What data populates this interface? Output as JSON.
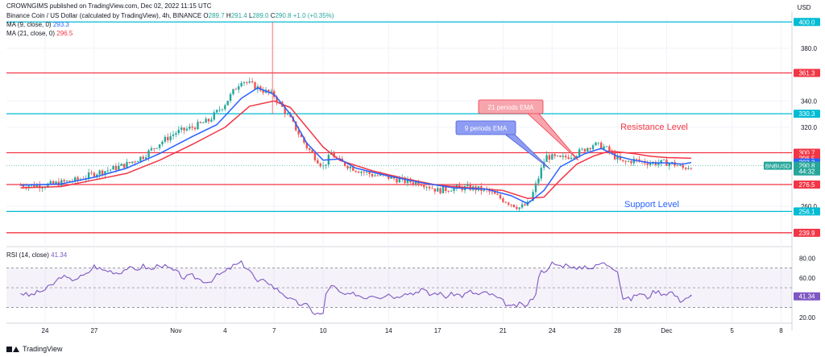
{
  "header": {
    "publisher": "CROWNGIMS published on TradingView.com, Dec 02, 2022 11:15 UTC",
    "symbol": "Binance Coin / US Dollar (calculated by TradingView), 4h, BINANCE",
    "ohlc": {
      "o_label": "O",
      "o": "289.7",
      "h_label": "H",
      "h": "291.4",
      "l_label": "L",
      "l": "289.0",
      "c_label": "C",
      "c": "290.8",
      "chg": "+1.0 (+0.35%)"
    },
    "ma9": {
      "label": "MA (9, close, 0)",
      "value": "293.3"
    },
    "ma21": {
      "label": "MA (21, close, 0)",
      "value": "296.5"
    }
  },
  "rsi": {
    "label": "RSI (14, close)",
    "value": "41.34"
  },
  "footer": {
    "brand": "TradingView"
  },
  "colors": {
    "bull": "#26a69a",
    "bear": "#ef5350",
    "ma9": "#2962ff",
    "ma21": "#f23645",
    "teal_level": "#00bcd4",
    "red_level": "#f23645",
    "rsi": "#7e57c2"
  },
  "annotations": {
    "ema21": "21 periods EMA",
    "ema9": "9 periods EMA",
    "resistance": "Resistance Level",
    "support": "Support Level"
  },
  "chart_data": {
    "type": "candlestick",
    "currency": "USD",
    "timeframe": "4h",
    "ylim": [
      230,
      402
    ],
    "price_ticks": [
      "380.0",
      "340.0",
      "320.0",
      "260.0"
    ],
    "levels": [
      {
        "value": 400,
        "label": "400.0",
        "kind": "teal"
      },
      {
        "value": 361.3,
        "label": "361.3",
        "kind": "red"
      },
      {
        "value": 330.3,
        "label": "330.3",
        "kind": "teal"
      },
      {
        "value": 300.7,
        "label": "300.7",
        "kind": "red"
      },
      {
        "value": 276.5,
        "label": "276.5",
        "kind": "red"
      },
      {
        "value": 256.1,
        "label": "256.1",
        "kind": "teal"
      },
      {
        "value": 239.9,
        "label": "239.9",
        "kind": "red"
      }
    ],
    "price_badges": [
      {
        "value": 296.5,
        "label": "296.5",
        "kind": "red"
      },
      {
        "value": 293.3,
        "label": "293.3",
        "kind": "blue"
      },
      {
        "value": 290.8,
        "label": "290.8",
        "kind": "ticker"
      },
      {
        "value": 286.5,
        "label": "44:32",
        "kind": "ticker_sub"
      }
    ],
    "ticker": "BNBUSD",
    "x_labels": [
      {
        "day": 0,
        "label": "24"
      },
      {
        "day": 3,
        "label": "27"
      },
      {
        "day": 8,
        "label": "Nov"
      },
      {
        "day": 11,
        "label": "4"
      },
      {
        "day": 14,
        "label": "7"
      },
      {
        "day": 17,
        "label": "10"
      },
      {
        "day": 21,
        "label": "14"
      },
      {
        "day": 24,
        "label": "17"
      },
      {
        "day": 28,
        "label": "21"
      },
      {
        "day": 31,
        "label": "24"
      },
      {
        "day": 35,
        "label": "28"
      },
      {
        "day": 38,
        "label": "Dec"
      },
      {
        "day": 42,
        "label": "5"
      },
      {
        "day": 45,
        "label": "8"
      }
    ],
    "close_path": [
      [
        -1.5,
        276
      ],
      [
        0,
        276
      ],
      [
        1,
        278
      ],
      [
        2,
        280
      ],
      [
        3,
        285
      ],
      [
        4,
        288
      ],
      [
        5,
        292
      ],
      [
        6,
        298
      ],
      [
        7,
        308
      ],
      [
        8,
        316
      ],
      [
        9,
        320
      ],
      [
        10,
        325
      ],
      [
        11,
        338
      ],
      [
        12,
        356
      ],
      [
        13,
        350
      ],
      [
        14,
        344
      ],
      [
        15,
        326
      ],
      [
        16,
        305
      ],
      [
        17,
        290
      ],
      [
        17.5,
        300
      ],
      [
        18,
        294
      ],
      [
        19,
        288
      ],
      [
        20,
        284
      ],
      [
        21,
        282
      ],
      [
        22,
        279
      ],
      [
        23,
        278
      ],
      [
        24,
        272
      ],
      [
        25,
        274
      ],
      [
        26,
        274
      ],
      [
        27,
        272
      ],
      [
        28,
        265
      ],
      [
        29,
        259
      ],
      [
        29.6,
        262
      ],
      [
        30.2,
        283
      ],
      [
        30.6,
        298
      ],
      [
        31.5,
        296
      ],
      [
        32.5,
        300
      ],
      [
        33.5,
        307
      ],
      [
        34.2,
        305
      ],
      [
        34.8,
        298
      ],
      [
        35.3,
        293
      ],
      [
        36,
        295
      ],
      [
        37,
        293
      ],
      [
        38,
        293
      ],
      [
        38.5,
        292
      ],
      [
        39,
        289
      ],
      [
        39.5,
        290.8
      ]
    ],
    "ma9": [
      [
        -1.5,
        276
      ],
      [
        1,
        277
      ],
      [
        3,
        282
      ],
      [
        5,
        289
      ],
      [
        7,
        300
      ],
      [
        9,
        313
      ],
      [
        10.5,
        322
      ],
      [
        12,
        342
      ],
      [
        13,
        350
      ],
      [
        14,
        345
      ],
      [
        15,
        330
      ],
      [
        16,
        308
      ],
      [
        17,
        295
      ],
      [
        18,
        296
      ],
      [
        19,
        289
      ],
      [
        21,
        283
      ],
      [
        23,
        278
      ],
      [
        25,
        274
      ],
      [
        27,
        273
      ],
      [
        28.5,
        268
      ],
      [
        29.5,
        262
      ],
      [
        30.5,
        272
      ],
      [
        31.5,
        290
      ],
      [
        33,
        300
      ],
      [
        34,
        304
      ],
      [
        35,
        298
      ],
      [
        36,
        295
      ],
      [
        37,
        293
      ],
      [
        38,
        293
      ],
      [
        39,
        292
      ],
      [
        39.5,
        293.3
      ]
    ],
    "ma21": [
      [
        -1.5,
        274
      ],
      [
        1,
        275
      ],
      [
        3,
        280
      ],
      [
        5,
        285
      ],
      [
        7,
        295
      ],
      [
        9,
        307
      ],
      [
        11,
        320
      ],
      [
        12.5,
        336
      ],
      [
        14,
        340
      ],
      [
        15,
        335
      ],
      [
        16,
        320
      ],
      [
        17,
        305
      ],
      [
        18,
        295
      ],
      [
        20,
        287
      ],
      [
        22,
        281
      ],
      [
        24,
        276
      ],
      [
        26,
        274
      ],
      [
        28,
        272
      ],
      [
        29.5,
        266
      ],
      [
        30.5,
        267
      ],
      [
        31.5,
        280
      ],
      [
        32.5,
        292
      ],
      [
        33.5,
        298
      ],
      [
        34.5,
        302
      ],
      [
        36,
        300
      ],
      [
        37,
        298
      ],
      [
        38,
        297
      ],
      [
        39.5,
        296.5
      ]
    ],
    "rsi": {
      "ylim": [
        15,
        90
      ],
      "ticks": [
        "80.00",
        "60.00",
        "20.00"
      ],
      "upper": 70,
      "middle": 50,
      "lower": 30,
      "current": {
        "value": 41.34,
        "label": "41.34"
      },
      "series": [
        [
          -1.5,
          45
        ],
        [
          -1,
          42
        ],
        [
          0,
          48
        ],
        [
          0.6,
          55
        ],
        [
          1,
          62
        ],
        [
          1.5,
          58
        ],
        [
          2,
          60
        ],
        [
          2.5,
          63
        ],
        [
          3,
          72
        ],
        [
          3.5,
          68
        ],
        [
          4,
          67
        ],
        [
          4.5,
          65
        ],
        [
          5,
          70
        ],
        [
          5.5,
          68
        ],
        [
          6,
          72
        ],
        [
          6.5,
          68
        ],
        [
          7,
          74
        ],
        [
          7.5,
          70
        ],
        [
          8,
          66
        ],
        [
          8.5,
          60
        ],
        [
          9,
          62
        ],
        [
          9.5,
          58
        ],
        [
          10,
          56
        ],
        [
          10.5,
          62
        ],
        [
          11,
          66
        ],
        [
          11.5,
          72
        ],
        [
          12,
          75
        ],
        [
          12.5,
          68
        ],
        [
          13,
          55
        ],
        [
          13.5,
          58
        ],
        [
          14,
          50
        ],
        [
          14.5,
          45
        ],
        [
          15,
          38
        ],
        [
          15.5,
          34
        ],
        [
          16,
          32
        ],
        [
          16.5,
          24
        ],
        [
          17,
          23
        ],
        [
          17.2,
          48
        ],
        [
          17.6,
          52
        ],
        [
          18,
          45
        ],
        [
          18.5,
          42
        ],
        [
          19,
          44
        ],
        [
          19.5,
          40
        ],
        [
          20,
          43
        ],
        [
          20.5,
          41
        ],
        [
          21,
          44
        ],
        [
          21.5,
          40
        ],
        [
          22,
          46
        ],
        [
          22.5,
          44
        ],
        [
          23,
          49
        ],
        [
          23.5,
          43
        ],
        [
          24,
          45
        ],
        [
          24.5,
          41
        ],
        [
          25,
          44
        ],
        [
          25.5,
          42
        ],
        [
          26,
          46
        ],
        [
          26.5,
          43
        ],
        [
          27,
          45
        ],
        [
          27.5,
          41
        ],
        [
          28,
          36
        ],
        [
          28.5,
          30
        ],
        [
          29,
          33
        ],
        [
          29.5,
          32
        ],
        [
          30,
          45
        ],
        [
          30.3,
          70
        ],
        [
          30.7,
          65
        ],
        [
          31,
          75
        ],
        [
          31.5,
          72
        ],
        [
          32,
          74
        ],
        [
          32.5,
          68
        ],
        [
          33,
          72
        ],
        [
          33.5,
          70
        ],
        [
          34,
          75
        ],
        [
          34.5,
          73
        ],
        [
          35,
          68
        ],
        [
          35.3,
          40
        ],
        [
          35.8,
          38
        ],
        [
          36.3,
          45
        ],
        [
          36.8,
          40
        ],
        [
          37.3,
          47
        ],
        [
          37.8,
          44
        ],
        [
          38.3,
          46
        ],
        [
          38.8,
          37
        ],
        [
          39.2,
          40
        ],
        [
          39.5,
          41.34
        ]
      ]
    }
  }
}
